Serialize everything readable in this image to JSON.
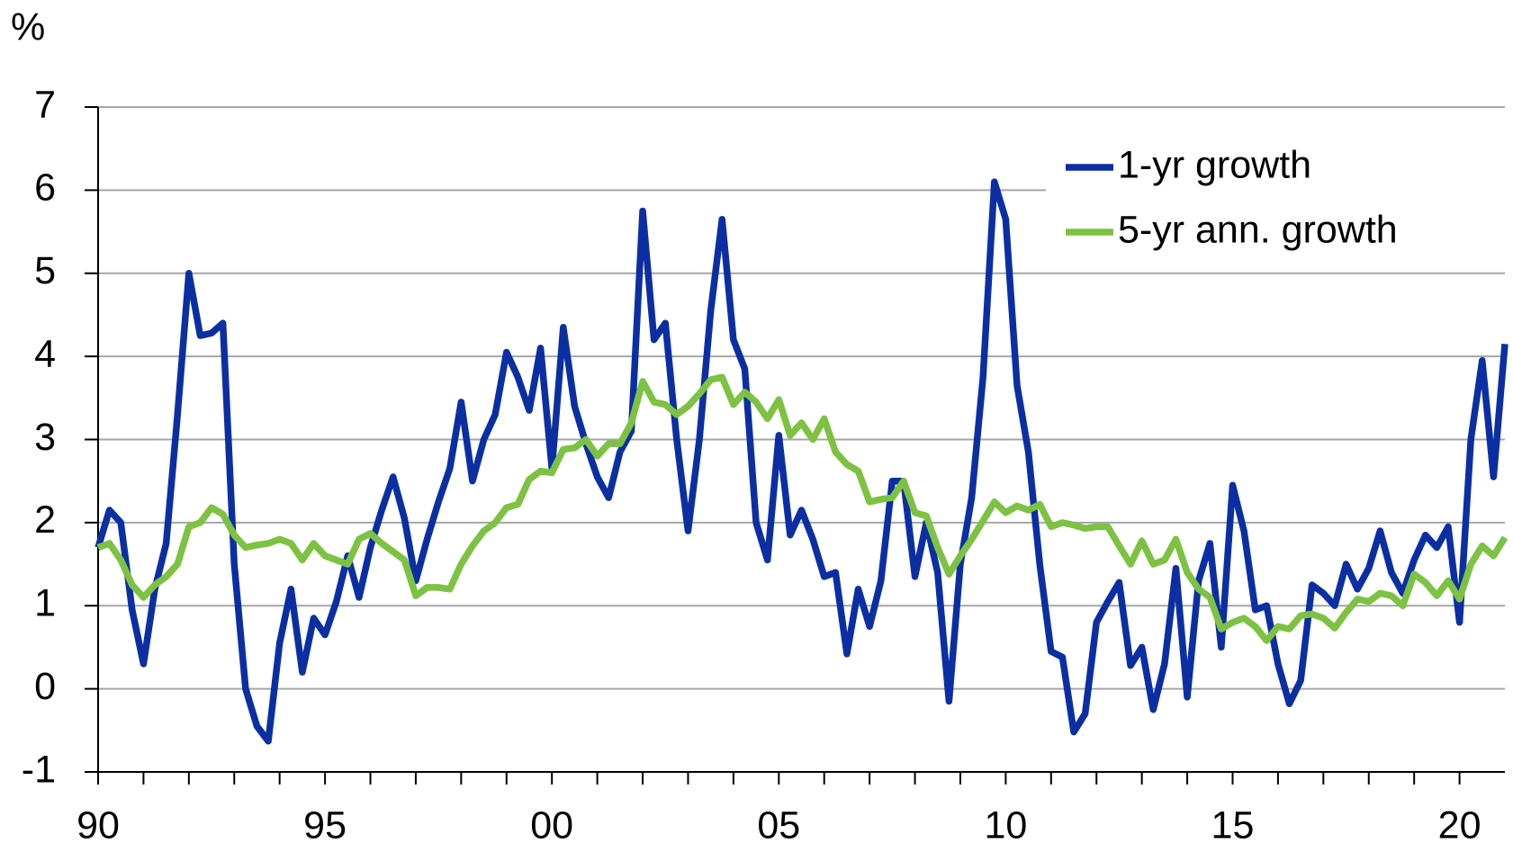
{
  "chart_data": {
    "type": "line",
    "y_label": "%",
    "x": [
      1990,
      1990.25,
      1990.5,
      1990.75,
      1991,
      1991.25,
      1991.5,
      1991.75,
      1992,
      1992.25,
      1992.5,
      1992.75,
      1993,
      1993.25,
      1993.5,
      1993.75,
      1994,
      1994.25,
      1994.5,
      1994.75,
      1995,
      1995.25,
      1995.5,
      1995.75,
      1996,
      1996.25,
      1996.5,
      1996.75,
      1997,
      1997.25,
      1997.5,
      1997.75,
      1998,
      1998.25,
      1998.5,
      1998.75,
      1999,
      1999.25,
      1999.5,
      1999.75,
      2000,
      2000.25,
      2000.5,
      2000.75,
      2001,
      2001.25,
      2001.5,
      2001.75,
      2002,
      2002.25,
      2002.5,
      2002.75,
      2003,
      2003.25,
      2003.5,
      2003.75,
      2004,
      2004.25,
      2004.5,
      2004.75,
      2005,
      2005.25,
      2005.5,
      2005.75,
      2006,
      2006.25,
      2006.5,
      2006.75,
      2007,
      2007.25,
      2007.5,
      2007.75,
      2008,
      2008.25,
      2008.5,
      2008.75,
      2009,
      2009.25,
      2009.5,
      2009.75,
      2010,
      2010.25,
      2010.5,
      2010.75,
      2011,
      2011.25,
      2011.5,
      2011.75,
      2012,
      2012.25,
      2012.5,
      2012.75,
      2013,
      2013.25,
      2013.5,
      2013.75,
      2014,
      2014.25,
      2014.5,
      2014.75,
      2015,
      2015.25,
      2015.5,
      2015.75,
      2016,
      2016.25,
      2016.5,
      2016.75,
      2017,
      2017.25,
      2017.5,
      2017.75,
      2018,
      2018.25,
      2018.5,
      2018.75,
      2019,
      2019.25,
      2019.5,
      2019.75,
      2020,
      2020.25,
      2020.5,
      2020.75,
      2021
    ],
    "series": [
      {
        "name": "1-yr growth",
        "color": "#0b2fa3",
        "values": [
          1.7,
          2.15,
          2.0,
          0.95,
          0.3,
          1.2,
          1.75,
          3.3,
          5.0,
          4.25,
          4.28,
          4.4,
          1.5,
          0.0,
          -0.45,
          -0.63,
          0.55,
          1.2,
          0.2,
          0.85,
          0.65,
          1.05,
          1.6,
          1.1,
          1.7,
          2.15,
          2.55,
          2.05,
          1.3,
          1.8,
          2.25,
          2.65,
          3.45,
          2.5,
          3.0,
          3.3,
          4.05,
          3.75,
          3.35,
          4.1,
          2.65,
          4.35,
          3.4,
          2.95,
          2.55,
          2.3,
          2.85,
          3.1,
          5.75,
          4.2,
          4.4,
          3.0,
          1.9,
          3.0,
          4.55,
          5.65,
          4.2,
          3.85,
          2.0,
          1.55,
          3.05,
          1.85,
          2.15,
          1.8,
          1.35,
          1.4,
          0.42,
          1.2,
          0.75,
          1.3,
          2.5,
          2.5,
          1.35,
          2.0,
          1.4,
          -0.15,
          1.5,
          2.3,
          3.75,
          6.1,
          5.65,
          3.65,
          2.85,
          1.5,
          0.45,
          0.38,
          -0.52,
          -0.3,
          0.8,
          1.05,
          1.28,
          0.28,
          0.5,
          -0.25,
          0.3,
          1.45,
          -0.1,
          1.3,
          1.75,
          0.5,
          2.45,
          1.9,
          0.95,
          1.0,
          0.3,
          -0.18,
          0.1,
          1.25,
          1.15,
          1.0,
          1.5,
          1.2,
          1.45,
          1.9,
          1.4,
          1.15,
          1.55,
          1.85,
          1.7,
          1.95,
          0.8,
          3.0,
          3.95,
          2.55,
          4.15
        ]
      },
      {
        "name": "5-yr ann. growth",
        "color": "#7dc242",
        "values": [
          1.7,
          1.75,
          1.55,
          1.25,
          1.1,
          1.25,
          1.35,
          1.5,
          1.95,
          2.0,
          2.18,
          2.1,
          1.85,
          1.7,
          1.73,
          1.75,
          1.8,
          1.75,
          1.55,
          1.75,
          1.6,
          1.55,
          1.5,
          1.8,
          1.87,
          1.75,
          1.65,
          1.55,
          1.12,
          1.22,
          1.22,
          1.2,
          1.5,
          1.72,
          1.9,
          2.0,
          2.18,
          2.22,
          2.52,
          2.62,
          2.6,
          2.88,
          2.9,
          3.0,
          2.8,
          2.95,
          2.95,
          3.2,
          3.7,
          3.45,
          3.42,
          3.3,
          3.4,
          3.55,
          3.72,
          3.75,
          3.42,
          3.57,
          3.45,
          3.25,
          3.48,
          3.05,
          3.2,
          3.0,
          3.25,
          2.85,
          2.7,
          2.62,
          2.25,
          2.28,
          2.3,
          2.5,
          2.12,
          2.08,
          1.7,
          1.38,
          1.6,
          1.8,
          2.02,
          2.25,
          2.12,
          2.2,
          2.15,
          2.22,
          1.95,
          2.0,
          1.97,
          1.93,
          1.95,
          1.95,
          1.72,
          1.5,
          1.78,
          1.5,
          1.55,
          1.8,
          1.4,
          1.2,
          1.1,
          0.72,
          0.8,
          0.85,
          0.75,
          0.58,
          0.75,
          0.72,
          0.88,
          0.9,
          0.85,
          0.73,
          0.92,
          1.08,
          1.05,
          1.15,
          1.12,
          1.0,
          1.38,
          1.28,
          1.12,
          1.3,
          1.08,
          1.5,
          1.72,
          1.6,
          1.82
        ]
      }
    ],
    "xlim": [
      1990,
      2021
    ],
    "xticks": [
      {
        "value": 1990,
        "label": "90"
      },
      {
        "value": 1995,
        "label": "95"
      },
      {
        "value": 2000,
        "label": "00"
      },
      {
        "value": 2005,
        "label": "05"
      },
      {
        "value": 2010,
        "label": "10"
      },
      {
        "value": 2015,
        "label": "15"
      },
      {
        "value": 2020,
        "label": "20"
      }
    ],
    "xticks_minor": [
      1991,
      1992,
      1993,
      1994,
      1996,
      1997,
      1998,
      1999,
      2001,
      2002,
      2003,
      2004,
      2006,
      2007,
      2008,
      2009,
      2011,
      2012,
      2013,
      2014,
      2016,
      2017,
      2018,
      2019
    ],
    "ylim": [
      -1,
      7
    ],
    "yticks": [
      -1,
      0,
      1,
      2,
      3,
      4,
      5,
      6,
      7
    ],
    "grid": true,
    "legend": "upper right"
  }
}
